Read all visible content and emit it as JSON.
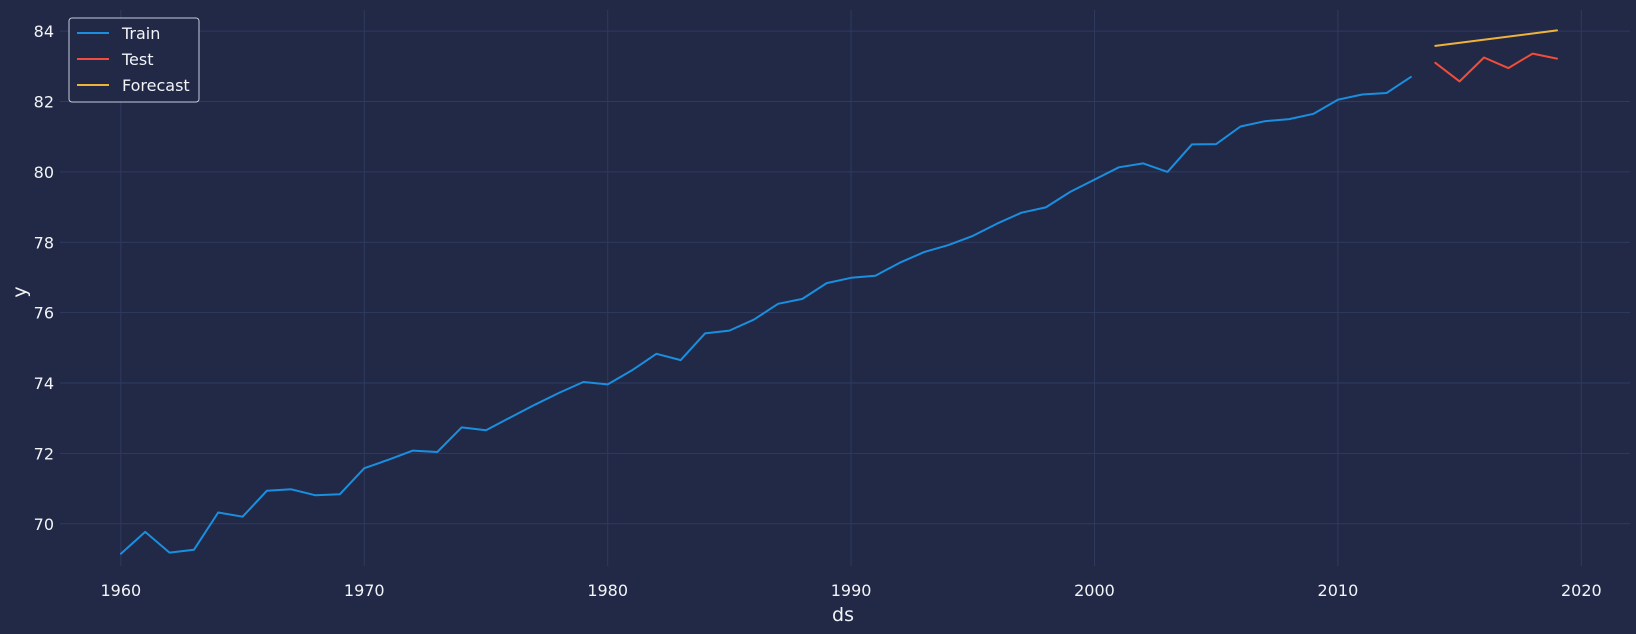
{
  "chart_data": {
    "type": "line",
    "title": "",
    "xlabel": "ds",
    "ylabel": "y",
    "xlim": [
      1957.5,
      2022.0
    ],
    "ylim": [
      68.8,
      84.6
    ],
    "x_ticks": [
      1960,
      1970,
      1980,
      1990,
      2000,
      2010,
      2020
    ],
    "y_ticks": [
      70,
      72,
      74,
      76,
      78,
      80,
      82,
      84
    ],
    "grid": true,
    "legend_position": "top-left",
    "background_color": "#212946",
    "series": [
      {
        "name": "Train",
        "color": "#1a8fe0",
        "x": [
          1960,
          1961,
          1962,
          1963,
          1964,
          1965,
          1966,
          1967,
          1968,
          1969,
          1970,
          1971,
          1972,
          1973,
          1974,
          1975,
          1976,
          1977,
          1978,
          1979,
          1980,
          1981,
          1982,
          1983,
          1984,
          1985,
          1986,
          1987,
          1988,
          1989,
          1990,
          1991,
          1992,
          1993,
          1994,
          1995,
          1996,
          1997,
          1998,
          1999,
          2000,
          2001,
          2002,
          2003,
          2004,
          2005,
          2006,
          2007,
          2008,
          2009,
          2010,
          2011,
          2012,
          2013
        ],
        "y": [
          69.15,
          69.77,
          69.18,
          69.26,
          70.32,
          70.2,
          70.94,
          70.98,
          70.81,
          70.84,
          71.58,
          71.82,
          72.08,
          72.04,
          72.74,
          72.66,
          73.02,
          73.38,
          73.72,
          74.03,
          73.96,
          74.36,
          74.83,
          74.65,
          75.41,
          75.49,
          75.8,
          76.25,
          76.39,
          76.84,
          76.99,
          77.05,
          77.42,
          77.72,
          77.92,
          78.18,
          78.53,
          78.84,
          78.99,
          79.43,
          79.78,
          80.13,
          80.24,
          80.0,
          80.78,
          80.79,
          81.29,
          81.44,
          81.5,
          81.65,
          82.05,
          82.2,
          82.24,
          82.7
        ]
      },
      {
        "name": "Test",
        "color": "#f24c3b",
        "x": [
          2014,
          2015,
          2016,
          2017,
          2018,
          2019
        ],
        "y": [
          83.1,
          82.57,
          83.25,
          82.95,
          83.36,
          83.22
        ]
      },
      {
        "name": "Forecast",
        "color": "#f0b33a",
        "x": [
          2014,
          2019
        ],
        "y": [
          83.58,
          84.02
        ]
      }
    ]
  }
}
